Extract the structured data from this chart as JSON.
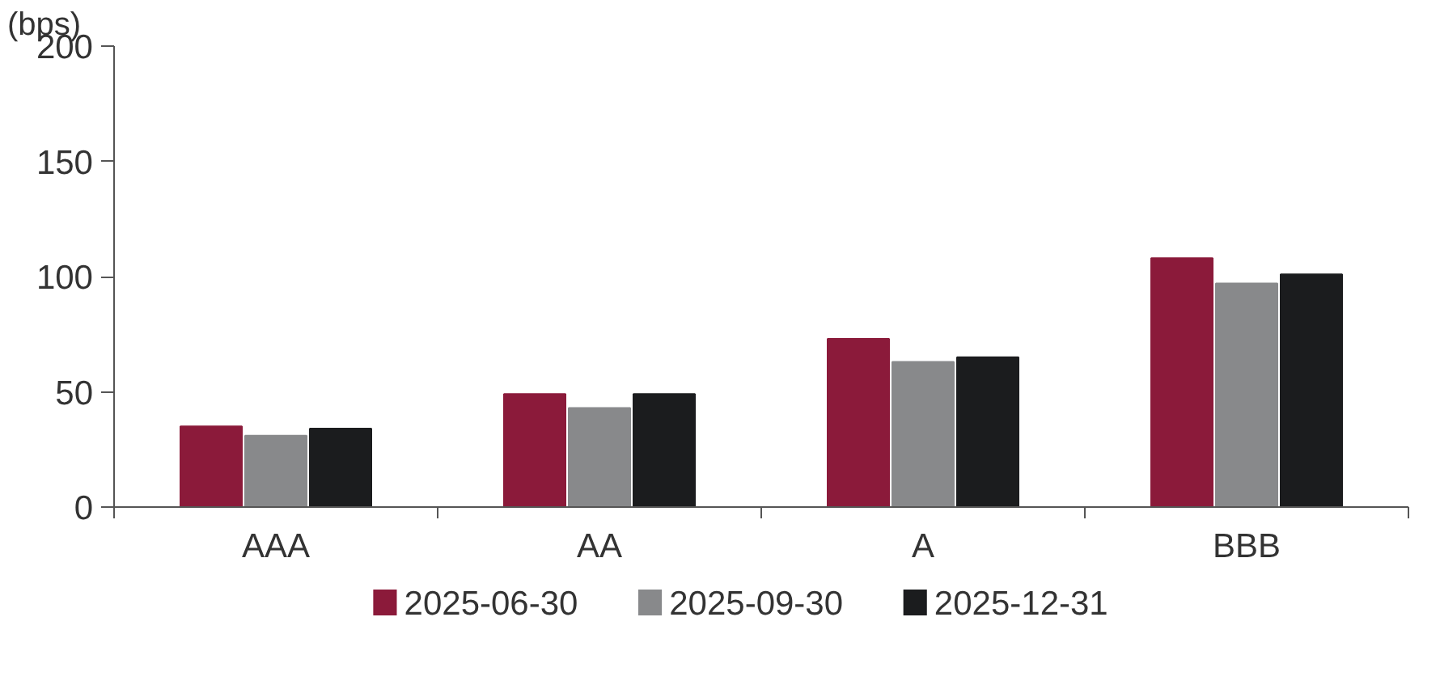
{
  "chart_data": {
    "type": "bar",
    "ylabel": "(bps)",
    "categories": [
      "AAA",
      "AA",
      "A",
      "BBB"
    ],
    "series": [
      {
        "name": "2025-06-30",
        "color": "#8b1a3a",
        "values": [
          35,
          49,
          73,
          108
        ]
      },
      {
        "name": "2025-09-30",
        "color": "#88898b",
        "values": [
          31,
          43,
          63,
          97
        ]
      },
      {
        "name": "2025-12-31",
        "color": "#1b1c1e",
        "values": [
          34,
          49,
          65,
          101
        ]
      }
    ],
    "ylim": [
      0,
      200
    ],
    "yticks": [
      0,
      50,
      100,
      150,
      200
    ],
    "grid": false,
    "legend": "bottom"
  }
}
